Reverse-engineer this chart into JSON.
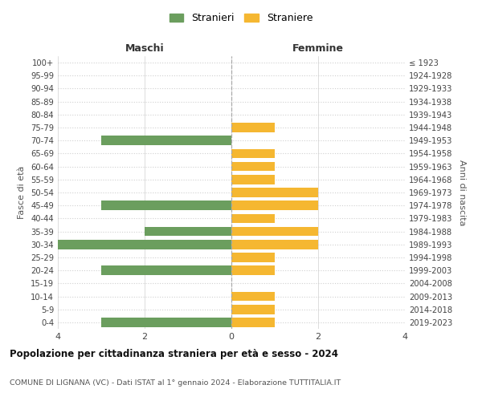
{
  "age_groups": [
    "100+",
    "95-99",
    "90-94",
    "85-89",
    "80-84",
    "75-79",
    "70-74",
    "65-69",
    "60-64",
    "55-59",
    "50-54",
    "45-49",
    "40-44",
    "35-39",
    "30-34",
    "25-29",
    "20-24",
    "15-19",
    "10-14",
    "5-9",
    "0-4"
  ],
  "birth_years": [
    "≤ 1923",
    "1924-1928",
    "1929-1933",
    "1934-1938",
    "1939-1943",
    "1944-1948",
    "1949-1953",
    "1954-1958",
    "1959-1963",
    "1964-1968",
    "1969-1973",
    "1974-1978",
    "1979-1983",
    "1984-1988",
    "1989-1993",
    "1994-1998",
    "1999-2003",
    "2004-2008",
    "2009-2013",
    "2014-2018",
    "2019-2023"
  ],
  "males": [
    0,
    0,
    0,
    0,
    0,
    0,
    3,
    0,
    0,
    0,
    0,
    3,
    0,
    2,
    4,
    0,
    3,
    0,
    0,
    0,
    3
  ],
  "females": [
    0,
    0,
    0,
    0,
    0,
    1,
    0,
    1,
    1,
    1,
    2,
    2,
    1,
    2,
    2,
    1,
    1,
    0,
    1,
    1,
    1
  ],
  "male_color": "#6b9e5e",
  "female_color": "#f5b731",
  "background_color": "#ffffff",
  "grid_color": "#d0d0d0",
  "title": "Popolazione per cittadinanza straniera per età e sesso - 2024",
  "subtitle": "COMUNE DI LIGNANA (VC) - Dati ISTAT al 1° gennaio 2024 - Elaborazione TUTTITALIA.IT",
  "legend_male": "Stranieri",
  "legend_female": "Straniere",
  "header_left": "Maschi",
  "header_right": "Femmine",
  "ylabel_left": "Fasce di età",
  "ylabel_right": "Anni di nascita",
  "xlim": 4,
  "xticks": [
    -4,
    -2,
    0,
    2,
    4
  ],
  "xticklabels": [
    "4",
    "2",
    "0",
    "2",
    "4"
  ]
}
